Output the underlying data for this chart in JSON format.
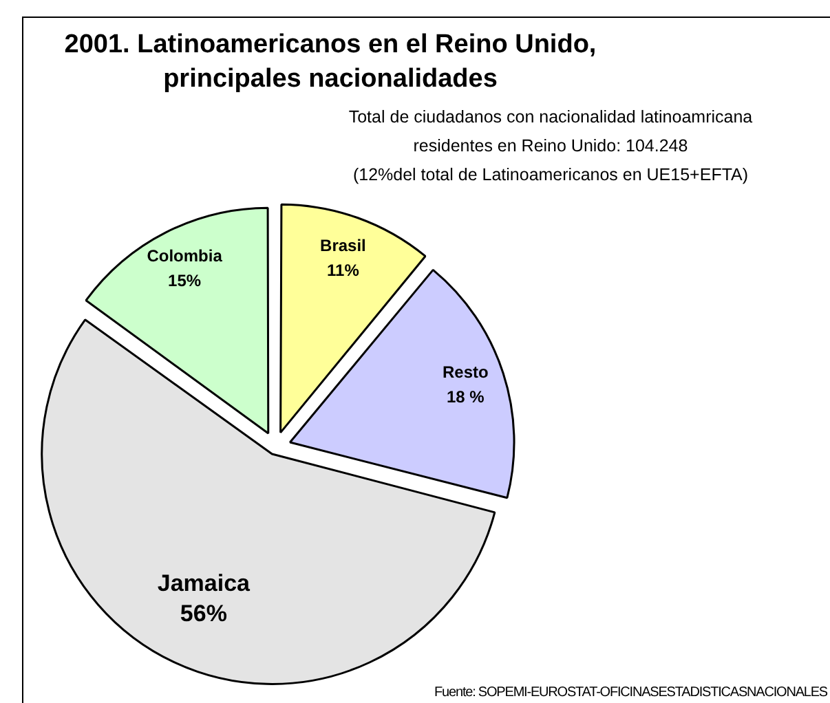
{
  "chart_data": {
    "type": "pie",
    "title": "2001. Latinoamericanos en el Reino Unido, principales nacionalidades",
    "subtitle": "Total de ciudadanos con nacionalidad latinoamricana\nresidentes en  Reino Unido: 104.248\n(12%del total de Latinoamericanos en UE15+EFTA)",
    "categories": [
      "Brasil",
      "Resto",
      "Jamaica",
      "Colombia"
    ],
    "values": [
      11,
      18,
      56,
      15
    ],
    "value_labels": [
      "11%",
      "18 %",
      "56%",
      "15%"
    ],
    "colors": [
      "#ffff99",
      "#ccccff",
      "#e4e4e4",
      "#ccffcc"
    ],
    "legend": false,
    "annotations": [
      "Fuente: SOPEMI-EUROSTAT-OFICINASESTADISTICASNACIONALES"
    ]
  }
}
